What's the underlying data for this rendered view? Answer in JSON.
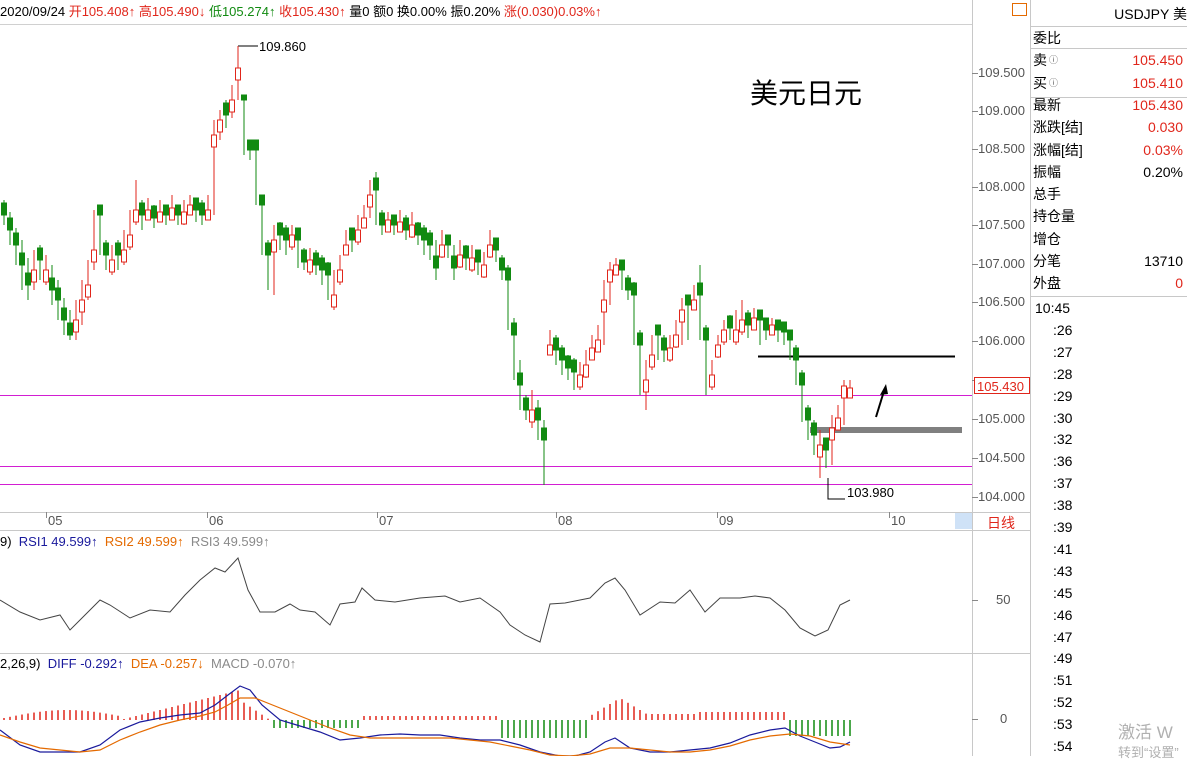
{
  "info_bar": {
    "date": "2020/09/24",
    "open": "开105.408↑",
    "high": "高105.490↓",
    "low": "低105.274↑",
    "close": "收105.430↑",
    "volume": "量0",
    "amount": "额0",
    "turnover": "换0.00%",
    "amplitude": "振0.20%",
    "change": "涨(0.030)0.03%↑"
  },
  "chart_title": "美元日元",
  "price_axis": [
    "109.500",
    "109.000",
    "108.500",
    "108.000",
    "107.500",
    "107.000",
    "106.500",
    "106.000",
    "105.500",
    "105.000",
    "104.500",
    "104.000"
  ],
  "current_price_tag": "105.430",
  "high_label": "109.860",
  "low_label": "103.980",
  "date_axis": [
    "05",
    "06",
    "07",
    "08",
    "09",
    "10"
  ],
  "period_label": "日线",
  "rsi": {
    "params": "9)",
    "rsi1": "RSI1 49.599↑",
    "rsi2": "RSI2 49.599↑",
    "rsi3": "RSI3 49.599↑",
    "axis_50": "50"
  },
  "macd": {
    "params": "2,26,9)",
    "diff": "DIFF -0.292↑",
    "dea": "DEA -0.257↓",
    "macd": "MACD -0.070↑",
    "axis_0": "0"
  },
  "quote_panel": {
    "symbol": "USDJPY 美",
    "rows": [
      {
        "k": "委比",
        "v": ""
      },
      {
        "k": "卖",
        "v": "105.450"
      },
      {
        "k": "买",
        "v": "105.410"
      },
      {
        "k": "最新",
        "v": "105.430"
      },
      {
        "k": "涨跌[结]",
        "v": "0.030"
      },
      {
        "k": "涨幅[结]",
        "v": "0.03%"
      },
      {
        "k": "振幅",
        "v": "0.20%"
      },
      {
        "k": "总手",
        "v": ""
      },
      {
        "k": "持仓量",
        "v": ""
      },
      {
        "k": "增仓",
        "v": ""
      },
      {
        "k": "分笔",
        "v": "13710"
      },
      {
        "k": "外盘",
        "v": "0"
      }
    ],
    "times": [
      "10:45",
      ":26",
      ":27",
      ":28",
      ":29",
      ":30",
      ":32",
      ":36",
      ":37",
      ":38",
      ":39",
      ":41",
      ":43",
      ":45",
      ":46",
      ":47",
      ":49",
      ":51",
      ":52",
      ":53",
      ":54"
    ]
  },
  "watermark": {
    "line1": "激活 W",
    "line2": "转到“设置”"
  },
  "colors": {
    "up": "#e0261b",
    "down": "#118a11",
    "support": "#d21ed2",
    "grid": "#c8c8c8"
  }
}
